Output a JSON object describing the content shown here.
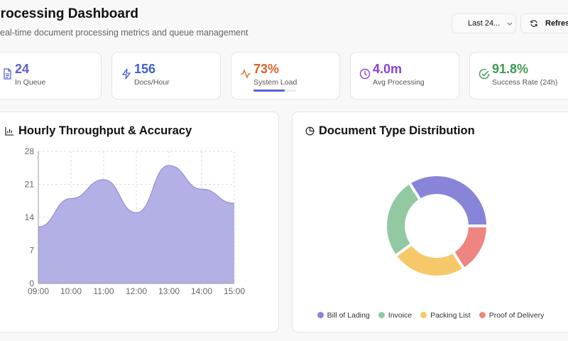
{
  "header": {
    "title": "Processing Dashboard",
    "subtitle": "Real-time document processing metrics and queue management"
  },
  "toolbar": {
    "range_select": "Last 24...",
    "refresh_label": "Refresh"
  },
  "stats": [
    {
      "value": "24",
      "label": "In Queue",
      "icon": "file-text-icon",
      "color": "#5b5fd6"
    },
    {
      "value": "156",
      "label": "Docs/Hour",
      "icon": "zap-icon",
      "color": "#3d5fd9"
    },
    {
      "value": "73%",
      "label": "System Load",
      "icon": "activity-icon",
      "color": "#d9642b",
      "progress": 73
    },
    {
      "value": "4.0m",
      "label": "Avg Processing",
      "icon": "clock-icon",
      "color": "#8a3fd6"
    },
    {
      "value": "91.8%",
      "label": "Success Rate (24h)",
      "icon": "check-circle-icon",
      "color": "#3f9a4f"
    }
  ],
  "throughput": {
    "title": "Hourly Throughput & Accuracy",
    "icon": "bar-chart-icon"
  },
  "distribution": {
    "title": "Document Type Distribution",
    "icon": "pie-chart-icon"
  },
  "chart_data": [
    {
      "type": "area",
      "x": [
        "09:00",
        "10:00",
        "11:00",
        "12:00",
        "13:00",
        "14:00",
        "15:00"
      ],
      "values": [
        12,
        18,
        22,
        15,
        25,
        20,
        17
      ],
      "ylim": [
        0,
        28
      ],
      "yticks": [
        0,
        7,
        14,
        21,
        28
      ],
      "grid": true,
      "color": "#8884d8"
    },
    {
      "type": "pie",
      "donut": true,
      "categories": [
        "Bill of Lading",
        "Invoice",
        "Packing List",
        "Proof of Delivery"
      ],
      "values": [
        34,
        26,
        24,
        16
      ],
      "colors": [
        "#8884d8",
        "#92c8a2",
        "#f7c86a",
        "#ee8580"
      ],
      "legend": "bottom"
    }
  ]
}
